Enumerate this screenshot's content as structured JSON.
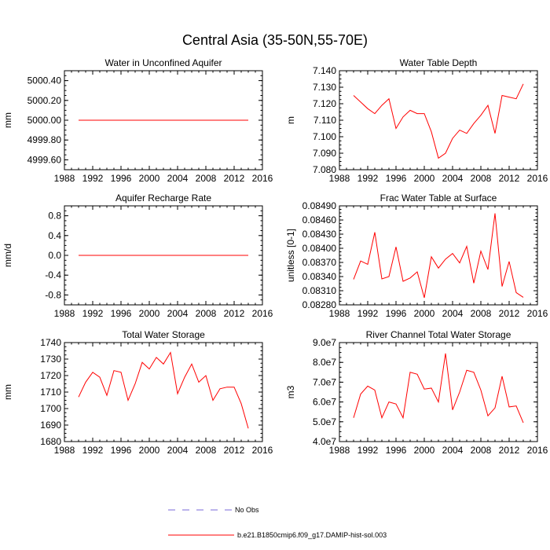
{
  "title": "Central Asia (35-50N,55-70E)",
  "colors": {
    "series": "#ff0000",
    "obs": "#7a6ad8",
    "axis": "#000000"
  },
  "x_ticks": [
    1988,
    1992,
    1996,
    2000,
    2004,
    2008,
    2012,
    2016
  ],
  "chart_data": [
    {
      "type": "line",
      "title": "Water in Unconfined Aquifer",
      "ylabel": "mm",
      "xlim": [
        1988,
        2016
      ],
      "ylim": [
        4999.5,
        5000.5
      ],
      "y_ticks": [
        "4999.60",
        "4999.80",
        "5000.00",
        "5000.20",
        "5000.40"
      ],
      "y_tick_values": [
        4999.6,
        4999.8,
        5000.0,
        5000.2,
        5000.4
      ],
      "x_ticks": [
        "1988",
        "1992",
        "1996",
        "2000",
        "2004",
        "2008",
        "2012",
        "2016"
      ],
      "series": [
        {
          "x": [
            1990,
            1991,
            1992,
            1993,
            1994,
            1995,
            1996,
            1997,
            1998,
            1999,
            2000,
            2001,
            2002,
            2003,
            2004,
            2005,
            2006,
            2007,
            2008,
            2009,
            2010,
            2011,
            2012,
            2013,
            2014
          ],
          "values": [
            5000,
            5000,
            5000,
            5000,
            5000,
            5000,
            5000,
            5000,
            5000,
            5000,
            5000,
            5000,
            5000,
            5000,
            5000,
            5000,
            5000,
            5000,
            5000,
            5000,
            5000,
            5000,
            5000,
            5000,
            5000
          ]
        }
      ]
    },
    {
      "type": "line",
      "title": "Water Table Depth",
      "ylabel": "m",
      "xlim": [
        1988,
        2016
      ],
      "ylim": [
        7.08,
        7.14
      ],
      "y_ticks": [
        "7.080",
        "7.090",
        "7.100",
        "7.110",
        "7.120",
        "7.130",
        "7.140"
      ],
      "y_tick_values": [
        7.08,
        7.09,
        7.1,
        7.11,
        7.12,
        7.13,
        7.14
      ],
      "x_ticks": [
        "1988",
        "1992",
        "1996",
        "2000",
        "2004",
        "2008",
        "2012",
        "2016"
      ],
      "series": [
        {
          "x": [
            1990,
            1991,
            1992,
            1993,
            1994,
            1995,
            1996,
            1997,
            1998,
            1999,
            2000,
            2001,
            2002,
            2003,
            2004,
            2005,
            2006,
            2007,
            2008,
            2009,
            2010,
            2011,
            2012,
            2013,
            2014
          ],
          "values": [
            7.125,
            7.121,
            7.117,
            7.114,
            7.119,
            7.123,
            7.105,
            7.112,
            7.116,
            7.114,
            7.114,
            7.103,
            7.087,
            7.09,
            7.099,
            7.104,
            7.102,
            7.108,
            7.113,
            7.119,
            7.102,
            7.125,
            7.124,
            7.123,
            7.132
          ]
        }
      ]
    },
    {
      "type": "line",
      "title": "Aquifer Recharge Rate",
      "ylabel": "mm/d",
      "xlim": [
        1988,
        2016
      ],
      "ylim": [
        -1.0,
        1.0
      ],
      "y_ticks": [
        "-0.8",
        "-0.4",
        "0.0",
        "0.4",
        "0.8"
      ],
      "y_tick_values": [
        -0.8,
        -0.4,
        0.0,
        0.4,
        0.8
      ],
      "x_ticks": [
        "1988",
        "1992",
        "1996",
        "2000",
        "2004",
        "2008",
        "2012",
        "2016"
      ],
      "series": [
        {
          "x": [
            1990,
            1991,
            1992,
            1993,
            1994,
            1995,
            1996,
            1997,
            1998,
            1999,
            2000,
            2001,
            2002,
            2003,
            2004,
            2005,
            2006,
            2007,
            2008,
            2009,
            2010,
            2011,
            2012,
            2013,
            2014
          ],
          "values": [
            0,
            0,
            0,
            0,
            0,
            0,
            0,
            0,
            0,
            0,
            0,
            0,
            0,
            0,
            0,
            0,
            0,
            0,
            0,
            0,
            0,
            0,
            0,
            0,
            0
          ]
        }
      ]
    },
    {
      "type": "line",
      "title": "Frac Water Table at Surface",
      "ylabel": "unitless [0-1]",
      "xlim": [
        1988,
        2016
      ],
      "ylim": [
        0.0828,
        0.0849
      ],
      "y_ticks": [
        "0.08280",
        "0.08310",
        "0.08340",
        "0.08370",
        "0.08400",
        "0.08430",
        "0.08460",
        "0.08490"
      ],
      "y_tick_values": [
        0.0828,
        0.0831,
        0.0834,
        0.0837,
        0.084,
        0.0843,
        0.0846,
        0.0849
      ],
      "x_ticks": [
        "1988",
        "1992",
        "1996",
        "2000",
        "2004",
        "2008",
        "2012",
        "2016"
      ],
      "series": [
        {
          "x": [
            1990,
            1991,
            1992,
            1993,
            1994,
            1995,
            1996,
            1997,
            1998,
            1999,
            2000,
            2001,
            2002,
            2003,
            2004,
            2005,
            2006,
            2007,
            2008,
            2009,
            2010,
            2011,
            2012,
            2013,
            2014
          ],
          "values": [
            0.08334,
            0.08373,
            0.08366,
            0.08434,
            0.08335,
            0.0834,
            0.08403,
            0.0833,
            0.08337,
            0.0835,
            0.08295,
            0.08382,
            0.08358,
            0.08377,
            0.08389,
            0.08369,
            0.08404,
            0.08326,
            0.08394,
            0.08355,
            0.08474,
            0.08319,
            0.08372,
            0.08306,
            0.08296
          ]
        }
      ]
    },
    {
      "type": "line",
      "title": "Total Water Storage",
      "ylabel": "mm",
      "xlim": [
        1988,
        2016
      ],
      "ylim": [
        1680,
        1740
      ],
      "y_ticks": [
        "1680",
        "1690",
        "1700",
        "1710",
        "1720",
        "1730",
        "1740"
      ],
      "y_tick_values": [
        1680,
        1690,
        1700,
        1710,
        1720,
        1730,
        1740
      ],
      "x_ticks": [
        "1988",
        "1992",
        "1996",
        "2000",
        "2004",
        "2008",
        "2012",
        "2016"
      ],
      "series": [
        {
          "x": [
            1990,
            1991,
            1992,
            1993,
            1994,
            1995,
            1996,
            1997,
            1998,
            1999,
            2000,
            2001,
            2002,
            2003,
            2004,
            2005,
            2006,
            2007,
            2008,
            2009,
            2010,
            2011,
            2012,
            2013,
            2014
          ],
          "values": [
            1707,
            1716,
            1722,
            1719,
            1708,
            1723,
            1722,
            1705,
            1715,
            1728,
            1724,
            1731,
            1727,
            1734,
            1709,
            1719,
            1727,
            1716,
            1720,
            1705,
            1712,
            1713,
            1713,
            1703,
            1688
          ]
        }
      ]
    },
    {
      "type": "line",
      "title": "River Channel Total Water Storage",
      "ylabel": "m3",
      "xlim": [
        1988,
        2016
      ],
      "ylim": [
        40000000,
        90000000
      ],
      "y_ticks": [
        "4.0e7",
        "5.0e7",
        "6.0e7",
        "7.0e7",
        "8.0e7",
        "9.0e7"
      ],
      "y_tick_values": [
        40000000,
        50000000,
        60000000,
        70000000,
        80000000,
        90000000
      ],
      "x_ticks": [
        "1988",
        "1992",
        "1996",
        "2000",
        "2004",
        "2008",
        "2012",
        "2016"
      ],
      "series": [
        {
          "x": [
            1990,
            1991,
            1992,
            1993,
            1994,
            1995,
            1996,
            1997,
            1998,
            1999,
            2000,
            2001,
            2002,
            2003,
            2004,
            2005,
            2006,
            2007,
            2008,
            2009,
            2010,
            2011,
            2012,
            2013,
            2014
          ],
          "values": [
            52000000,
            64000000,
            68000000,
            66000000,
            52000000,
            60000000,
            59000000,
            52000000,
            75000000,
            74000000,
            66500000,
            67000000,
            60000000,
            84500000,
            56000000,
            65000000,
            76000000,
            75000000,
            66000000,
            53000000,
            57000000,
            73000000,
            57500000,
            58000000,
            49500000
          ]
        }
      ]
    }
  ],
  "legend": [
    {
      "label": "No Obs",
      "style": "dashed",
      "color": "#7a6ad8"
    },
    {
      "label": "b.e21.B1850cmip6.f09_g17.DAMIP-hist-sol.003",
      "style": "solid",
      "color": "#ff0000"
    }
  ]
}
